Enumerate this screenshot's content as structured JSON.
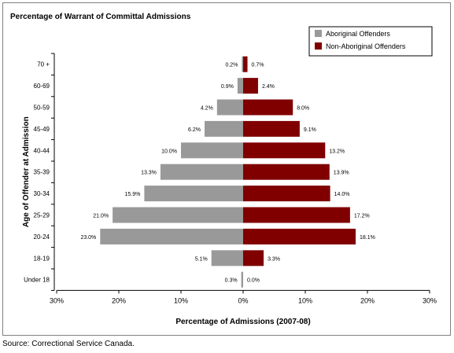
{
  "chart_data": {
    "type": "bar",
    "orientation": "horizontal",
    "layout": "population-pyramid",
    "title": "Percentage of Warrant of Committal Admissions",
    "xlabel": "Percentage of Admissions (2007-08)",
    "ylabel": "Age of Offender at Admission",
    "xlim": [
      -30,
      30
    ],
    "xticks": [
      "30%",
      "20%",
      "10%",
      "0%",
      "10%",
      "20%",
      "30%"
    ],
    "categories": [
      "70 +",
      "60-69",
      "50-59",
      "45-49",
      "40-44",
      "35-39",
      "30-34",
      "25-29",
      "20-24",
      "18-19",
      "Under 18"
    ],
    "series": [
      {
        "name": "Aboriginal Offenders",
        "color": "#999999",
        "values": [
          0.2,
          0.9,
          4.2,
          6.2,
          10.0,
          13.3,
          15.9,
          21.0,
          23.0,
          5.1,
          0.3
        ],
        "labels": [
          "0.2%",
          "0.9%",
          "4.2%",
          "6.2%",
          "10.0%",
          "13.3%",
          "15.9%",
          "21.0%",
          "23.0%",
          "5.1%",
          "0.3%"
        ]
      },
      {
        "name": "Non-Aboriginal Offenders",
        "color": "#800000",
        "values": [
          0.7,
          2.4,
          8.0,
          9.1,
          13.2,
          13.9,
          14.0,
          17.2,
          18.1,
          3.3,
          0.0
        ],
        "labels": [
          "0.7%",
          "2.4%",
          "8.0%",
          "9.1%",
          "13.2%",
          "13.9%",
          "14.0%",
          "17.2%",
          "18.1%",
          "3.3%",
          "0.0%"
        ]
      }
    ],
    "grid": false,
    "legend_position": "top-right"
  },
  "source": "Source:  Correctional Service Canada."
}
